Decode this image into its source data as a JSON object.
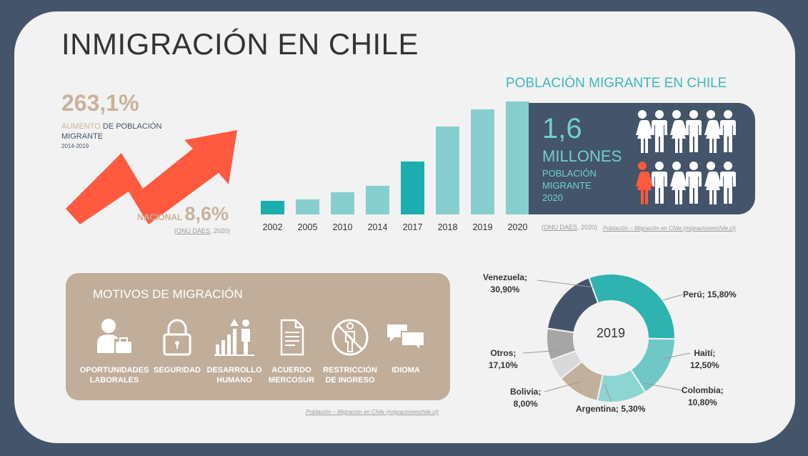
{
  "title": "INMIGRACIÓN EN CHILE",
  "growth": {
    "value": "263,1%",
    "desc_accent": "AUMENTO",
    "desc_rest": " DE POBLACIÓN",
    "desc_line2": "MIGRANTE",
    "years": "2014-2019",
    "nacional_label": "NACIONAL ",
    "nacional_value": "8,6%",
    "source_prefix": "(",
    "source_link": "ONU DAES",
    "source_suffix": ", 2020)"
  },
  "chart_data": {
    "type": "bar",
    "title": "POBLACIÓN MIGRANTE EN CHILE",
    "categories": [
      "2002",
      "2005",
      "2010",
      "2014",
      "2017",
      "2018",
      "2019",
      "2020"
    ],
    "values": [
      0.19,
      0.21,
      0.31,
      0.41,
      0.75,
      1.25,
      1.49,
      1.6
    ],
    "highlight": [
      true,
      false,
      false,
      false,
      true,
      false,
      false,
      false
    ],
    "ylabel": "",
    "xlabel": "",
    "colors": {
      "normal": "#87cfcf",
      "highlight": "#1aaeae"
    }
  },
  "population": {
    "number": "1,6",
    "unit": "MILLONES",
    "desc_line1": "POBLACIÓN",
    "desc_line2": "MIGRANTE",
    "desc_line3": "2020",
    "figure_ratio": "1 of 12 highlighted",
    "source1_prefix": "(",
    "source1_link": "ONU DAES",
    "source1_suffix": ", 2020)",
    "source2": "Población – Migración en Chile (migracionenchile.cl)"
  },
  "motivos": {
    "title": "MOTIVOS DE MIGRACIÓN",
    "items": [
      {
        "line1": "OPORTUNIDADES",
        "line2": "LABORALES",
        "icon": "worker-briefcase-icon"
      },
      {
        "line1": "SEGURIDAD",
        "line2": "",
        "icon": "padlock-icon"
      },
      {
        "line1": "DESARROLLO",
        "line2": "HUMANO",
        "icon": "growth-person-icon"
      },
      {
        "line1": "ACUERDO",
        "line2": "MERCOSUR",
        "icon": "document-icon"
      },
      {
        "line1": "RESTRICCIÓN",
        "line2": "DE INGRESO",
        "icon": "no-entry-person-icon"
      },
      {
        "line1": "IDIOMA",
        "line2": "",
        "icon": "speech-bubbles-icon"
      }
    ],
    "source": "Población – Migración en Chile (migracionenchile.cl)"
  },
  "donut": {
    "center_label": "2019",
    "type": "pie",
    "slices": [
      {
        "name": "Venezuela",
        "value": 30.9,
        "label1": "Venezuela;",
        "label2": "30,90%",
        "color": "#2fb3b0"
      },
      {
        "name": "Perú",
        "value": 15.8,
        "label1": "Perú; 15,80%",
        "label2": "",
        "color": "#6fc8c6"
      },
      {
        "name": "Haití",
        "value": 12.5,
        "label1": "Haití;",
        "label2": "12,50%",
        "color": "#8dd5d3"
      },
      {
        "name": "Colombia",
        "value": 10.8,
        "label1": "Colombia;",
        "label2": "10,80%",
        "color": "#c2b09c"
      },
      {
        "name": "Argentina",
        "value": 5.3,
        "label1": "Argentina; 5,30%",
        "label2": "",
        "color": "#d9d9d9"
      },
      {
        "name": "Bolivia",
        "value": 8.0,
        "label1": "Bolivia;",
        "label2": "8,00%",
        "color": "#a6a6a6"
      },
      {
        "name": "Otros",
        "value": 17.1,
        "label1": "Otros;",
        "label2": "17,10%",
        "color": "#44546a"
      }
    ]
  }
}
